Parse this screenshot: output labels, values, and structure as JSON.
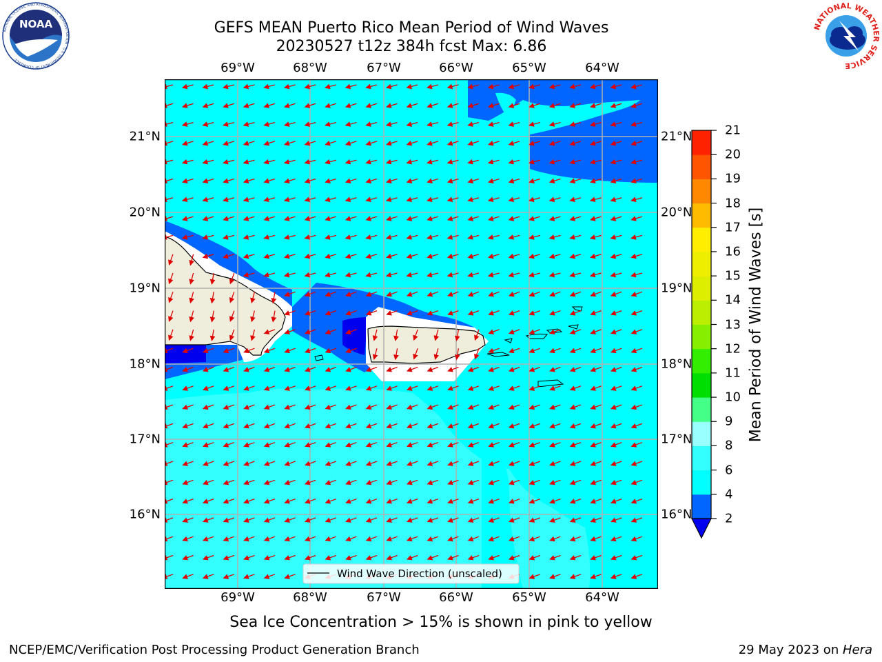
{
  "header": {
    "title_line1": "GEFS MEAN Puerto Rico Mean Period of Wind Waves",
    "title_line2": "20230527 t12z 384h fcst   Max: 6.86"
  },
  "logos": {
    "noaa_text": "NOAA",
    "noaa_ring_text": "NATIONAL OCEANIC AND ATMOSPHERIC ADMINISTRATION · U.S. DEPARTMENT OF COMMERCE",
    "nws_ring_text": "NATIONAL WEATHER SERVICE"
  },
  "map": {
    "lon_labels": [
      "69°W",
      "68°W",
      "67°W",
      "66°W",
      "65°W",
      "64°W"
    ],
    "lat_labels": [
      "21°N",
      "20°N",
      "19°N",
      "18°N",
      "17°N",
      "16°N"
    ],
    "legend_label": "Wind Wave Direction (unscaled)",
    "arrow_color": "#e00000",
    "land_color": "#efeedc"
  },
  "colorbar": {
    "label": "Mean Period of Wind Waves [s]",
    "ticks": [
      "2",
      "4",
      "6",
      "8",
      "9",
      "10",
      "11",
      "12",
      "13",
      "14",
      "15",
      "16",
      "17",
      "18",
      "19",
      "20",
      "21"
    ],
    "colors": [
      "#0066ff",
      "#00ffff",
      "#33ffff",
      "#99ffff",
      "#44ff88",
      "#00dd00",
      "#33ee00",
      "#88ee00",
      "#bbee00",
      "#ddee00",
      "#eeee00",
      "#ffee00",
      "#ffbb00",
      "#ff8800",
      "#ff5500",
      "#ff2200"
    ],
    "extend_color": "#0000ee"
  },
  "subtitle": "Sea Ice Concentration > 15% is shown in pink to yellow",
  "footer": {
    "left": "NCEP/EMC/Verification Post Processing Product Generation Branch",
    "date": "29 May 2023 on ",
    "host": "Hera"
  }
}
